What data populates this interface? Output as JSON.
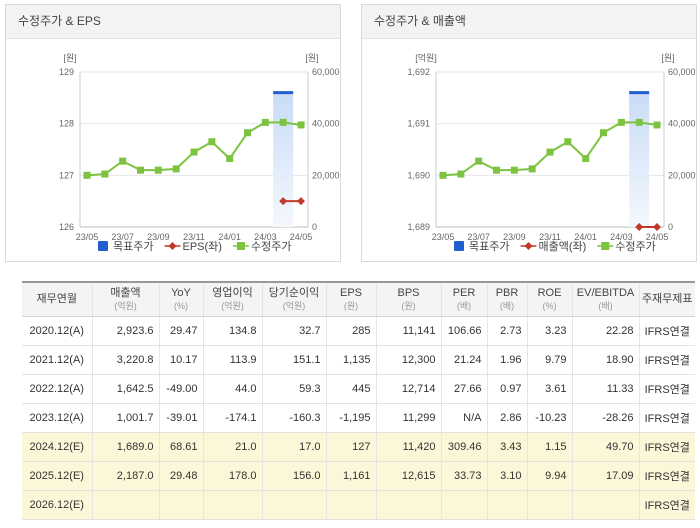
{
  "chart_data": [
    {
      "type": "line",
      "title": "수정주가 & EPS",
      "categories": [
        "23/05",
        "23/06",
        "23/07",
        "23/08",
        "23/09",
        "23/10",
        "23/11",
        "23/12",
        "24/01",
        "24/02",
        "24/03",
        "24/04",
        "24/05"
      ],
      "x_tick_labels": [
        "23/05",
        "23/07",
        "23/09",
        "23/11",
        "24/01",
        "24/03",
        "24/05"
      ],
      "left_axis": {
        "unit": "[원]",
        "range": [
          126,
          129
        ],
        "ticks": [
          "129",
          "128",
          "127",
          "126"
        ]
      },
      "right_axis": {
        "unit": "[원]",
        "range": [
          0,
          60000
        ],
        "ticks": [
          "60,000",
          "40,000",
          "20,000",
          "0"
        ]
      },
      "series": [
        {
          "name": "목표주가",
          "kind": "band",
          "axis": "right",
          "color": "#1f5fd1",
          "values": [
            null,
            null,
            null,
            null,
            null,
            null,
            null,
            null,
            null,
            null,
            null,
            52000,
            null
          ]
        },
        {
          "name": "EPS(좌)",
          "kind": "line",
          "axis": "left",
          "color": "#c0392b",
          "values": [
            null,
            null,
            null,
            null,
            null,
            null,
            null,
            null,
            null,
            null,
            null,
            126.5,
            126.5
          ]
        },
        {
          "name": "수정주가",
          "kind": "line",
          "axis": "right",
          "color": "#7cc340",
          "values": [
            20000,
            20500,
            25500,
            22000,
            22000,
            22500,
            29000,
            33000,
            26500,
            36500,
            40500,
            40500,
            39500
          ]
        }
      ]
    },
    {
      "type": "line",
      "title": "수정주가 & 매출액",
      "categories": [
        "23/05",
        "23/06",
        "23/07",
        "23/08",
        "23/09",
        "23/10",
        "23/11",
        "23/12",
        "24/01",
        "24/02",
        "24/03",
        "24/04",
        "24/05"
      ],
      "x_tick_labels": [
        "23/05",
        "23/07",
        "23/09",
        "23/11",
        "24/01",
        "24/03",
        "24/05"
      ],
      "left_axis": {
        "unit": "[억원]",
        "range": [
          1689,
          1692
        ],
        "ticks": [
          "1,692",
          "1,691",
          "1,690",
          "1,689"
        ]
      },
      "right_axis": {
        "unit": "[원]",
        "range": [
          0,
          60000
        ],
        "ticks": [
          "60,000",
          "40,000",
          "20,000",
          "0"
        ]
      },
      "series": [
        {
          "name": "목표주가",
          "kind": "band",
          "axis": "right",
          "color": "#1f5fd1",
          "values": [
            null,
            null,
            null,
            null,
            null,
            null,
            null,
            null,
            null,
            null,
            null,
            52000,
            null
          ]
        },
        {
          "name": "매출액(좌)",
          "kind": "line",
          "axis": "left",
          "color": "#c0392b",
          "values": [
            null,
            null,
            null,
            null,
            null,
            null,
            null,
            null,
            null,
            null,
            null,
            1689.0,
            1689.0
          ]
        },
        {
          "name": "수정주가",
          "kind": "line",
          "axis": "right",
          "color": "#7cc340",
          "values": [
            20000,
            20500,
            25500,
            22000,
            22000,
            22500,
            29000,
            33000,
            26500,
            36500,
            40500,
            40500,
            39500
          ]
        }
      ]
    }
  ],
  "table": {
    "headers": [
      {
        "label": "재무연월",
        "unit": ""
      },
      {
        "label": "매출액",
        "unit": "(억원)"
      },
      {
        "label": "YoY",
        "unit": "(%)"
      },
      {
        "label": "영업이익",
        "unit": "(억원)"
      },
      {
        "label": "당기순이익",
        "unit": "(억원)"
      },
      {
        "label": "EPS",
        "unit": "(원)"
      },
      {
        "label": "BPS",
        "unit": "(원)"
      },
      {
        "label": "PER",
        "unit": "(배)"
      },
      {
        "label": "PBR",
        "unit": "(배)"
      },
      {
        "label": "ROE",
        "unit": "(%)"
      },
      {
        "label": "EV/EBITDA",
        "unit": "(배)"
      },
      {
        "label": "주재무제표",
        "unit": ""
      }
    ],
    "rows": [
      {
        "estimate": false,
        "cells": [
          "2020.12(A)",
          "2,923.6",
          "29.47",
          "134.8",
          "32.7",
          "285",
          "11,141",
          "106.66",
          "2.73",
          "3.23",
          "22.28",
          "IFRS연결"
        ]
      },
      {
        "estimate": false,
        "cells": [
          "2021.12(A)",
          "3,220.8",
          "10.17",
          "113.9",
          "151.1",
          "1,135",
          "12,300",
          "21.24",
          "1.96",
          "9.79",
          "18.90",
          "IFRS연결"
        ]
      },
      {
        "estimate": false,
        "cells": [
          "2022.12(A)",
          "1,642.5",
          "-49.00",
          "44.0",
          "59.3",
          "445",
          "12,714",
          "27.66",
          "0.97",
          "3.61",
          "11.33",
          "IFRS연결"
        ]
      },
      {
        "estimate": false,
        "cells": [
          "2023.12(A)",
          "1,001.7",
          "-39.01",
          "-174.1",
          "-160.3",
          "-1,195",
          "11,299",
          "N/A",
          "2.86",
          "-10.23",
          "-28.26",
          "IFRS연결"
        ]
      },
      {
        "estimate": true,
        "cells": [
          "2024.12(E)",
          "1,689.0",
          "68.61",
          "21.0",
          "17.0",
          "127",
          "11,420",
          "309.46",
          "3.43",
          "1.15",
          "49.70",
          "IFRS연결"
        ]
      },
      {
        "estimate": true,
        "cells": [
          "2025.12(E)",
          "2,187.0",
          "29.48",
          "178.0",
          "156.0",
          "1,161",
          "12,615",
          "33.73",
          "3.10",
          "9.94",
          "17.09",
          "IFRS연결"
        ]
      },
      {
        "estimate": true,
        "cells": [
          "2026.12(E)",
          "",
          "",
          "",
          "",
          "",
          "",
          "",
          "",
          "",
          "",
          "IFRS연결"
        ]
      }
    ]
  }
}
